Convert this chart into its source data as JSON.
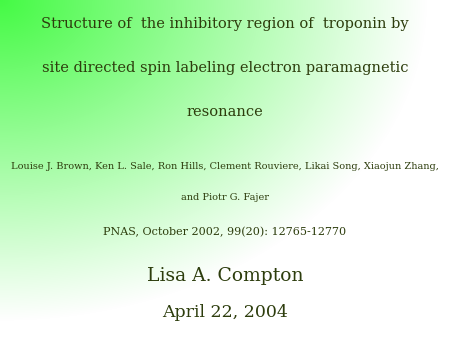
{
  "title_line1": "Structure of  the inhibitory region of  troponin by",
  "title_line2": "site directed spin labeling electron paramagnetic",
  "title_line3": "resonance",
  "authors_line1": "Louise J. Brown, Ken L. Sale, Ron Hills, Clement Rouviere, Likai Song, Xiaojun Zhang,",
  "authors_line2": "and Piotr G. Fajer",
  "journal": "PNAS, October 2002, 99(20): 12765-12770",
  "presenter": "Lisa A. Compton",
  "date": "April 22, 2004",
  "text_color": "#2d3d0d",
  "green_color": [
    0.27,
    0.98,
    0.27
  ],
  "white_color": [
    1.0,
    1.0,
    1.0
  ]
}
